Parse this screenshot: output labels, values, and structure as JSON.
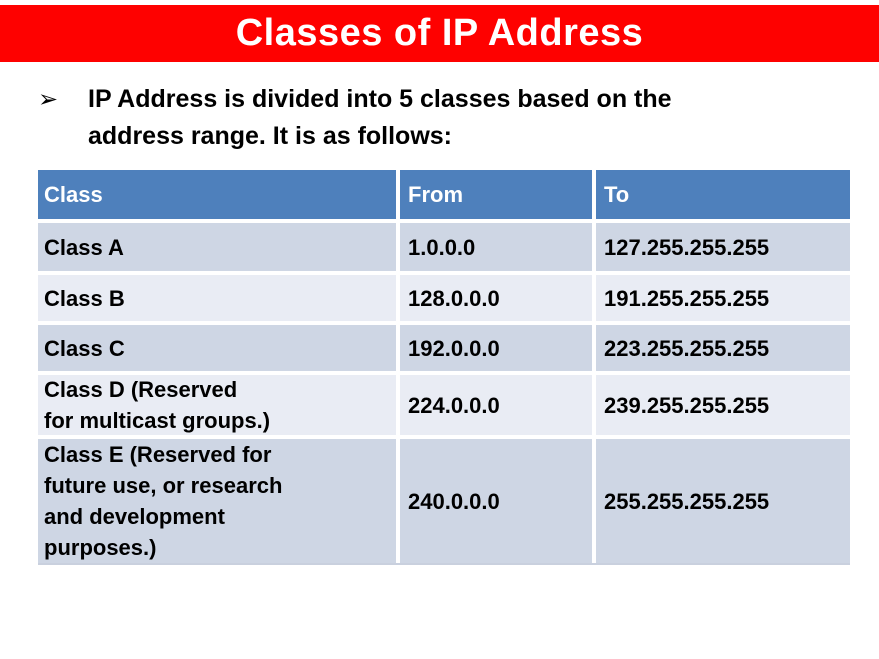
{
  "slide": {
    "title": "Classes of IP Address",
    "bullet": {
      "marker": "➢",
      "text": "IP Address is divided into 5 classes based on the\naddress range. It is as follows:"
    }
  },
  "table": {
    "columns": {
      "class": "Class",
      "from": "From",
      "to": "To"
    },
    "rows": [
      {
        "class": "Class A",
        "from": "1.0.0.0",
        "to": "127.255.255.255"
      },
      {
        "class": "Class B",
        "from": "128.0.0.0",
        "to": "191.255.255.255"
      },
      {
        "class": "Class C",
        "from": "192.0.0.0",
        "to": "223.255.255.255"
      },
      {
        "class": "Class D (Reserved\nfor multicast groups.)",
        "from": "224.0.0.0",
        "to": "239.255.255.255"
      },
      {
        "class": "Class E (Reserved for\nfuture use, or research\nand development\npurposes.)",
        "from": "240.0.0.0",
        "to": "255.255.255.255"
      }
    ]
  },
  "colors": {
    "title_bar_red": "#fe0100",
    "title_text": "#ffffff",
    "header_blue": "#4e80bc",
    "row_band_dark": "#ced6e4",
    "row_band_light": "#e9ecf4",
    "body_text": "#000000"
  }
}
